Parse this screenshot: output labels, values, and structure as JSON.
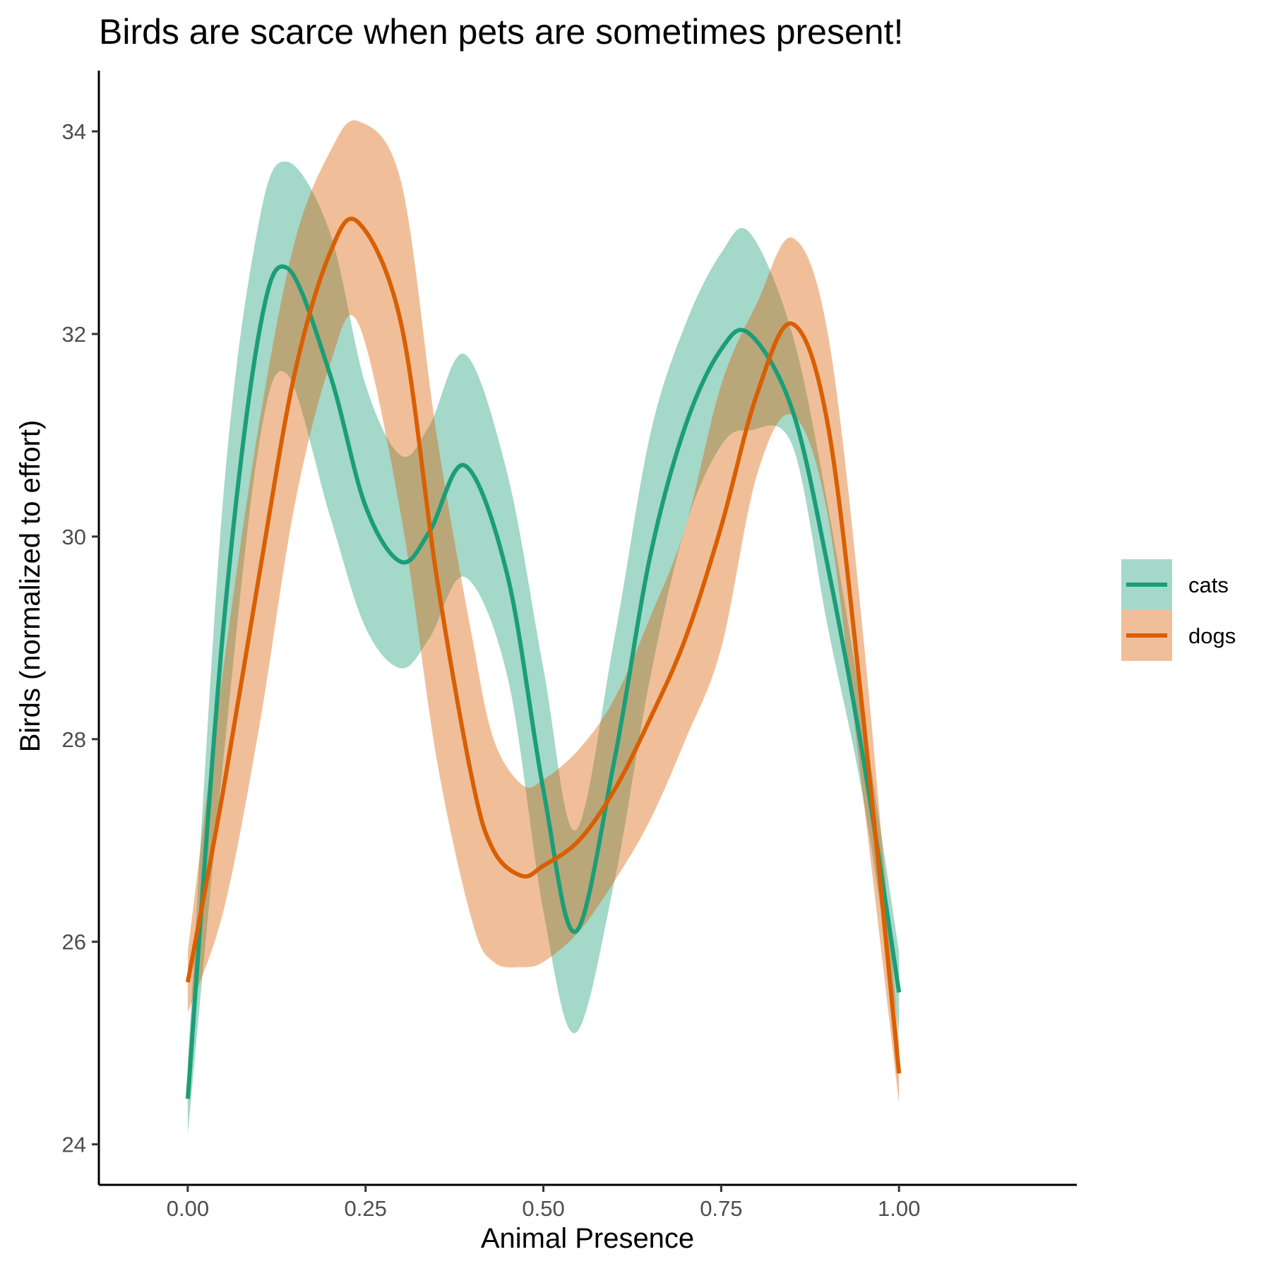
{
  "chart_data": {
    "type": "line",
    "title": "Birds are scarce when pets are sometimes present!",
    "xlabel": "Animal Presence",
    "ylabel": "Birds (normalized to effort)",
    "xlim": [
      -0.125,
      1.25
    ],
    "ylim": [
      23.6,
      34.6
    ],
    "x_ticks": [
      0,
      0.25,
      0.5,
      0.75,
      1
    ],
    "x_tick_labels": [
      "0.00",
      "0.25",
      "0.50",
      "0.75",
      "1.00"
    ],
    "y_ticks": [
      24,
      26,
      28,
      30,
      32,
      34
    ],
    "y_tick_labels": [
      "24",
      "26",
      "28",
      "30",
      "32",
      "34"
    ],
    "grid": false,
    "legend_position": "right",
    "series": [
      {
        "name": "cats",
        "color": "#1b9e77",
        "x": [
          0,
          0.05,
          0.1,
          0.14,
          0.2,
          0.25,
          0.3,
          0.34,
          0.39,
          0.45,
          0.5,
          0.545,
          0.6,
          0.65,
          0.7,
          0.75,
          0.79,
          0.85,
          0.9,
          0.95,
          1.0
        ],
        "y": [
          24.45,
          29.1,
          32.0,
          32.65,
          31.6,
          30.3,
          29.75,
          30.05,
          30.7,
          29.6,
          27.5,
          26.1,
          27.8,
          29.8,
          31.1,
          31.85,
          32.0,
          31.25,
          29.7,
          27.8,
          25.5
        ],
        "lower": [
          24.1,
          27.8,
          30.9,
          31.6,
          30.2,
          29.1,
          28.7,
          29.0,
          29.6,
          28.6,
          26.3,
          25.1,
          26.6,
          28.6,
          30.1,
          30.9,
          31.05,
          30.9,
          29.1,
          27.4,
          25.1
        ],
        "upper": [
          24.8,
          30.4,
          33.1,
          33.7,
          33.0,
          31.5,
          30.8,
          31.1,
          31.8,
          30.6,
          28.7,
          27.1,
          29.0,
          31.0,
          32.1,
          32.8,
          33.0,
          32.0,
          30.3,
          28.2,
          25.9
        ]
      },
      {
        "name": "dogs",
        "color": "#d95f02",
        "x": [
          0,
          0.05,
          0.1,
          0.15,
          0.2,
          0.24,
          0.3,
          0.35,
          0.4,
          0.43,
          0.47,
          0.5,
          0.55,
          0.6,
          0.65,
          0.7,
          0.75,
          0.8,
          0.85,
          0.9,
          0.95,
          1.0
        ],
        "y": [
          25.6,
          27.5,
          29.6,
          31.6,
          32.8,
          33.1,
          32.1,
          29.6,
          27.6,
          26.9,
          26.65,
          26.75,
          27.0,
          27.5,
          28.2,
          29.0,
          30.1,
          31.4,
          32.1,
          31.1,
          28.2,
          24.7
        ],
        "lower": [
          25.3,
          26.3,
          28.1,
          30.3,
          31.7,
          32.1,
          30.2,
          27.8,
          26.2,
          25.8,
          25.75,
          25.8,
          26.1,
          26.6,
          27.2,
          28.0,
          28.9,
          30.6,
          31.2,
          30.2,
          27.4,
          24.4
        ],
        "upper": [
          25.9,
          28.7,
          31.1,
          32.9,
          33.8,
          34.1,
          33.5,
          31.0,
          29.0,
          28.0,
          27.55,
          27.6,
          27.9,
          28.4,
          29.2,
          30.1,
          31.5,
          32.3,
          32.95,
          32.0,
          29.0,
          25.0
        ]
      }
    ]
  }
}
